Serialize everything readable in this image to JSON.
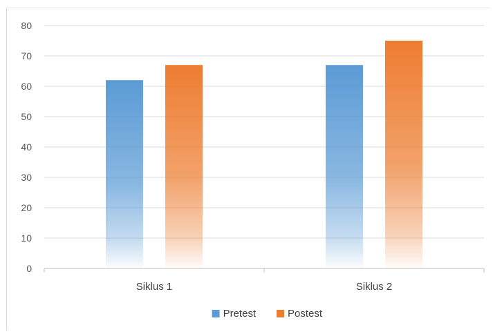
{
  "chart_data": {
    "type": "bar",
    "title": "",
    "xlabel": "",
    "ylabel": "",
    "categories": [
      "Siklus 1",
      "Siklus 2"
    ],
    "series": [
      {
        "name": "Pretest",
        "values": [
          62,
          67
        ],
        "color": "#5b9bd5"
      },
      {
        "name": "Postest",
        "values": [
          67,
          75
        ],
        "color": "#ed7d31"
      }
    ],
    "ylim": [
      0,
      80
    ],
    "yticks": [
      0,
      10,
      20,
      30,
      40,
      50,
      60,
      70,
      80
    ],
    "grid": true,
    "legend_position": "bottom",
    "bar_fill": "gradient-fade-to-bottom"
  }
}
